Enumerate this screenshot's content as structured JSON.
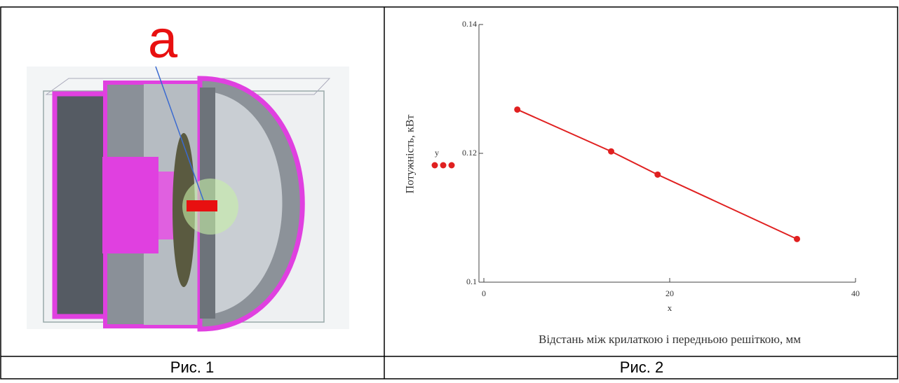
{
  "figure1": {
    "label": "a",
    "caption": "Рис. 1"
  },
  "chart_data": {
    "type": "line",
    "x_label": "x",
    "x_title": "Відстань між крилаткою і передньою решіткою, мм",
    "y_label": "Потужність, кВт",
    "x": [
      3.6,
      13.7,
      18.7,
      33.7
    ],
    "series": [
      {
        "name": "y",
        "color": "#e02020",
        "values": [
          0.1268,
          0.1203,
          0.1167,
          0.1067
        ]
      }
    ],
    "xlim": [
      0,
      40
    ],
    "xticks": [
      0,
      20,
      40
    ],
    "ylim": [
      0.1,
      0.14
    ],
    "yticks": [
      0.1,
      0.12,
      0.14
    ],
    "caption": "Рис. 2"
  }
}
